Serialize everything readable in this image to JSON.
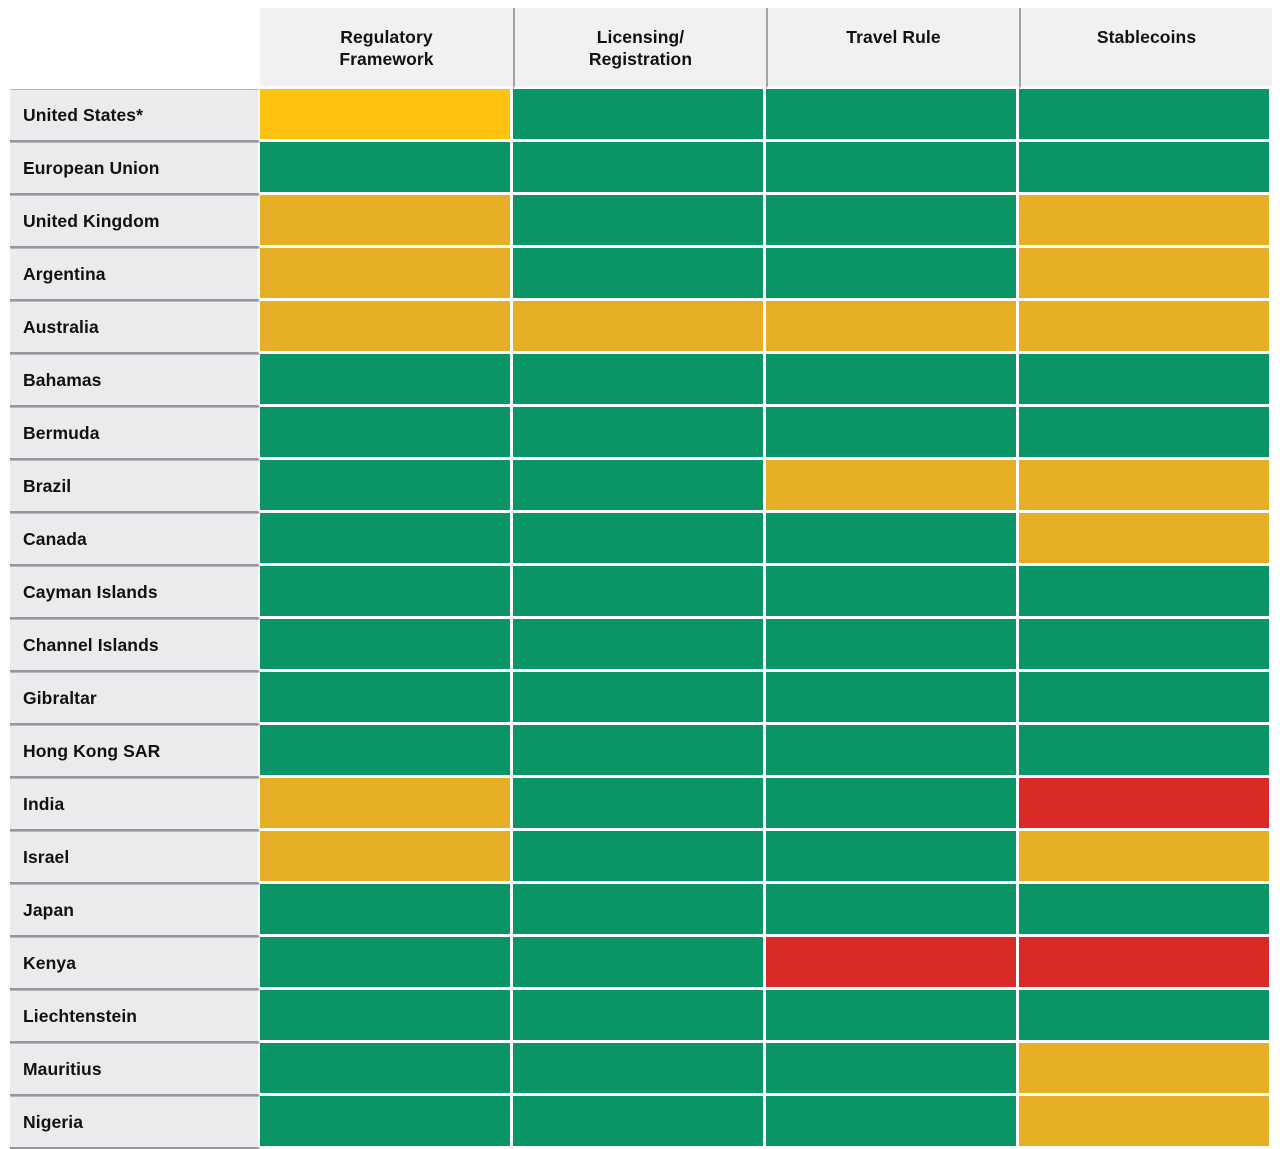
{
  "colors": {
    "green": "#0a9566",
    "amber": "#e6ae25",
    "yellow": "#ffc20e",
    "red": "#da2a27",
    "header_bg": "#f1f1f2",
    "label_bg": "#ebebed",
    "label_separator": "#96969a",
    "header_divider": "#a3a3a7",
    "gap": "#ffffff"
  },
  "header": {
    "column_display": [
      "Regulatory\nFramework",
      "Licensing/\nRegistration",
      "Travel Rule",
      "Stablecoins"
    ]
  },
  "chart_data": {
    "type": "heatmap",
    "title": "",
    "columns": [
      "Regulatory Framework",
      "Licensing/Registration",
      "Travel Rule",
      "Stablecoins"
    ],
    "rows": [
      "United States*",
      "European Union",
      "United Kingdom",
      "Argentina",
      "Australia",
      "Bahamas",
      "Bermuda",
      "Brazil",
      "Canada",
      "Cayman Islands",
      "Channel Islands",
      "Gibraltar",
      "Hong Kong SAR",
      "India",
      "Israel",
      "Japan",
      "Kenya",
      "Liechtenstein",
      "Mauritius",
      "Nigeria"
    ],
    "values": [
      [
        "yellow",
        "green",
        "green",
        "green"
      ],
      [
        "green",
        "green",
        "green",
        "green"
      ],
      [
        "amber",
        "green",
        "green",
        "amber"
      ],
      [
        "amber",
        "green",
        "green",
        "amber"
      ],
      [
        "amber",
        "amber",
        "amber",
        "amber"
      ],
      [
        "green",
        "green",
        "green",
        "green"
      ],
      [
        "green",
        "green",
        "green",
        "green"
      ],
      [
        "green",
        "green",
        "amber",
        "amber"
      ],
      [
        "green",
        "green",
        "green",
        "amber"
      ],
      [
        "green",
        "green",
        "green",
        "green"
      ],
      [
        "green",
        "green",
        "green",
        "green"
      ],
      [
        "green",
        "green",
        "green",
        "green"
      ],
      [
        "green",
        "green",
        "green",
        "green"
      ],
      [
        "amber",
        "green",
        "green",
        "red"
      ],
      [
        "amber",
        "green",
        "green",
        "amber"
      ],
      [
        "green",
        "green",
        "green",
        "green"
      ],
      [
        "green",
        "green",
        "red",
        "red"
      ],
      [
        "green",
        "green",
        "green",
        "green"
      ],
      [
        "green",
        "green",
        "green",
        "amber"
      ],
      [
        "green",
        "green",
        "green",
        "amber"
      ]
    ],
    "cell_color_hex": {
      "green": "#0a9566",
      "amber": "#e6ae25",
      "yellow": "#ffc20e",
      "red": "#da2a27"
    },
    "layout_hints": {
      "legend": "none",
      "grid": "white gaps between cells",
      "row_label_position": "left",
      "column_header_position": "top"
    }
  }
}
